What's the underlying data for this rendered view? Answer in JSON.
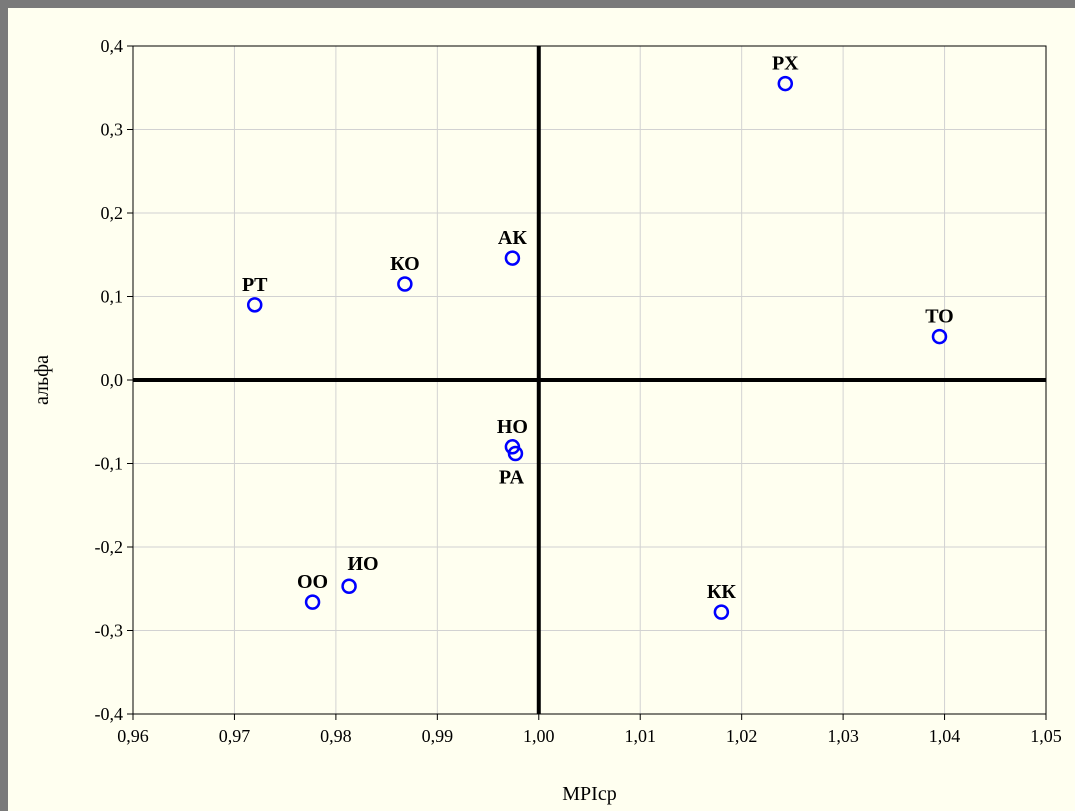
{
  "chart_data": {
    "type": "scatter",
    "title": "",
    "xlabel": "MPIcp",
    "ylabel": "альфа",
    "xlim": [
      0.96,
      1.05
    ],
    "ylim": [
      -0.4,
      0.4
    ],
    "grid": true,
    "x_ticks": [
      0.96,
      0.97,
      0.98,
      0.99,
      1.0,
      1.01,
      1.02,
      1.03,
      1.04,
      1.05
    ],
    "x_tick_labels": [
      "0,96",
      "0,97",
      "0,98",
      "0,99",
      "1,00",
      "1,01",
      "1,02",
      "1,03",
      "1,04",
      "1,05"
    ],
    "y_ticks": [
      -0.4,
      -0.3,
      -0.2,
      -0.1,
      0.0,
      0.1,
      0.2,
      0.3,
      0.4
    ],
    "y_tick_labels": [
      "-0,4",
      "-0,3",
      "-0,2",
      "-0,1",
      "0,0",
      "0,1",
      "0,2",
      "0,3",
      "0,4"
    ],
    "reference_lines": {
      "x": 1.0,
      "y": 0.0
    },
    "marker_color": "#0000ff",
    "points": [
      {
        "label": "PX",
        "x": 1.0243,
        "y": 0.355,
        "label_pos": "above"
      },
      {
        "label": "АК",
        "x": 0.9974,
        "y": 0.146,
        "label_pos": "above"
      },
      {
        "label": "КО",
        "x": 0.9868,
        "y": 0.115,
        "label_pos": "above"
      },
      {
        "label": "PT",
        "x": 0.972,
        "y": 0.09,
        "label_pos": "above"
      },
      {
        "label": "TO",
        "x": 1.0395,
        "y": 0.052,
        "label_pos": "above"
      },
      {
        "label": "HO",
        "x": 0.9974,
        "y": -0.08,
        "label_pos": "above"
      },
      {
        "label": "PA",
        "x": 0.9977,
        "y": -0.088,
        "label_pos": "below"
      },
      {
        "label": "ИО",
        "x": 0.9813,
        "y": -0.247,
        "label_pos": "above-right"
      },
      {
        "label": "ОО",
        "x": 0.9777,
        "y": -0.266,
        "label_pos": "above"
      },
      {
        "label": "КК",
        "x": 1.018,
        "y": -0.278,
        "label_pos": "above"
      }
    ]
  }
}
